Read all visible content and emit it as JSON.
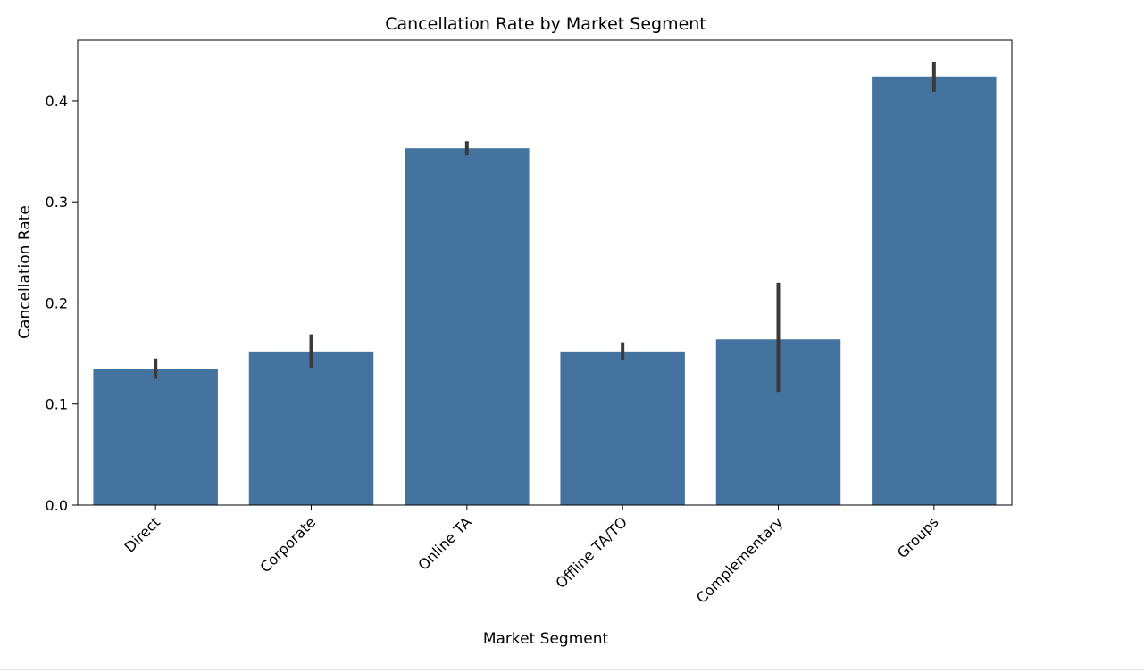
{
  "chart_data": {
    "type": "bar",
    "title": "Cancellation Rate by Market Segment",
    "xlabel": "Market Segment",
    "ylabel": "Cancellation Rate",
    "categories": [
      "Direct",
      "Corporate",
      "Online TA",
      "Offline TA/TO",
      "Complementary",
      "Groups"
    ],
    "values": [
      0.135,
      0.152,
      0.353,
      0.152,
      0.164,
      0.424
    ],
    "error_bars": [
      [
        0.125,
        0.145
      ],
      [
        0.136,
        0.169
      ],
      [
        0.346,
        0.36
      ],
      [
        0.144,
        0.161
      ],
      [
        0.112,
        0.22
      ],
      [
        0.409,
        0.438
      ]
    ],
    "ylim": [
      0,
      0.46
    ],
    "yticks": [
      0.0,
      0.1,
      0.2,
      0.3,
      0.4
    ],
    "ytick_labels": [
      "0.0",
      "0.1",
      "0.2",
      "0.3",
      "0.4"
    ],
    "grid": false,
    "bar_color": "#4473a0",
    "error_color": "#3a3a3a"
  }
}
